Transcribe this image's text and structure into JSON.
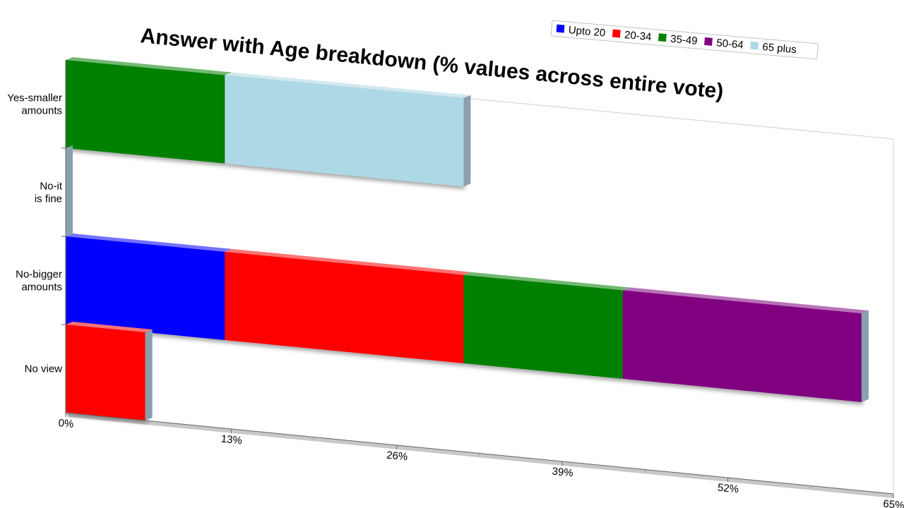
{
  "chart_data": {
    "type": "bar",
    "orientation": "horizontal",
    "stacked": true,
    "title": "Answer with Age breakdown (% values across entire vote)",
    "categories": [
      "Yes-smaller amounts",
      "No-it is fine",
      "No-bigger amounts",
      "No view"
    ],
    "category_labels": [
      [
        "Yes-smaller",
        "amounts"
      ],
      [
        "No-it",
        "is fine"
      ],
      [
        "No-bigger",
        "amounts"
      ],
      [
        "No view"
      ]
    ],
    "series": [
      {
        "name": "Upto 20",
        "color": "#0000ff",
        "values": [
          0,
          0,
          12.5,
          0
        ]
      },
      {
        "name": "20-34",
        "color": "#ff0000",
        "values": [
          0,
          0,
          18.75,
          6.25
        ]
      },
      {
        "name": "35-49",
        "color": "#008000",
        "values": [
          12.5,
          0,
          12.5,
          0
        ]
      },
      {
        "name": "50-64",
        "color": "#800080",
        "values": [
          0,
          0,
          18.75,
          0
        ]
      },
      {
        "name": "65 plus",
        "color": "#add8e6",
        "values": [
          18.75,
          0,
          0,
          0
        ]
      }
    ],
    "x_ticks": [
      "0%",
      "13%",
      "26%",
      "39%",
      "52%",
      "65%"
    ],
    "xlim": [
      0,
      65
    ],
    "legend_position": "top-right",
    "perspective_3d": true
  }
}
